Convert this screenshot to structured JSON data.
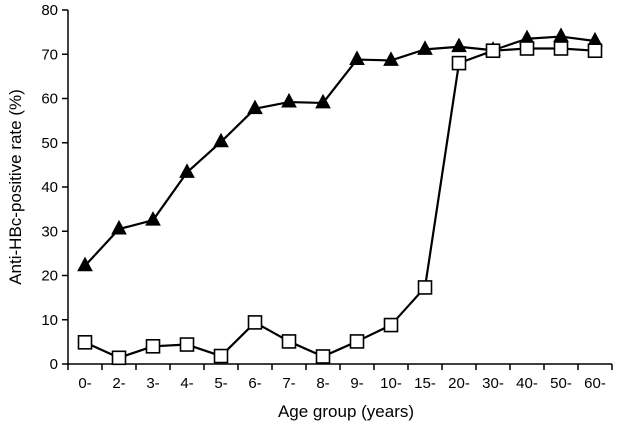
{
  "chart_data": {
    "type": "line",
    "xlabel": "Age group (years)",
    "ylabel": "Anti-HBc-positive rate (%)",
    "ylim": [
      0,
      80
    ],
    "yticks": [
      0,
      10,
      20,
      30,
      40,
      50,
      60,
      70,
      80
    ],
    "grid": false,
    "legend": "none",
    "categories": [
      "0-",
      "2-",
      "3-",
      "4-",
      "5-",
      "6-",
      "7-",
      "8-",
      "9-",
      "10-",
      "15-",
      "20-",
      "30-",
      "40-",
      "50-",
      "60-"
    ],
    "series": [
      {
        "marker": "filled-triangle",
        "color": "#000000",
        "values": [
          22.2,
          30.5,
          32.5,
          43.3,
          50.2,
          57.7,
          59.2,
          59.0,
          68.8,
          68.6,
          71.1,
          71.7,
          70.9,
          73.5,
          74.0,
          73.0
        ]
      },
      {
        "marker": "open-square",
        "color": "#000000",
        "values": [
          4.9,
          1.4,
          4.0,
          4.4,
          1.8,
          9.4,
          5.1,
          1.7,
          5.1,
          8.8,
          17.3,
          68.0,
          70.8,
          71.3,
          71.3,
          70.8
        ]
      }
    ]
  }
}
